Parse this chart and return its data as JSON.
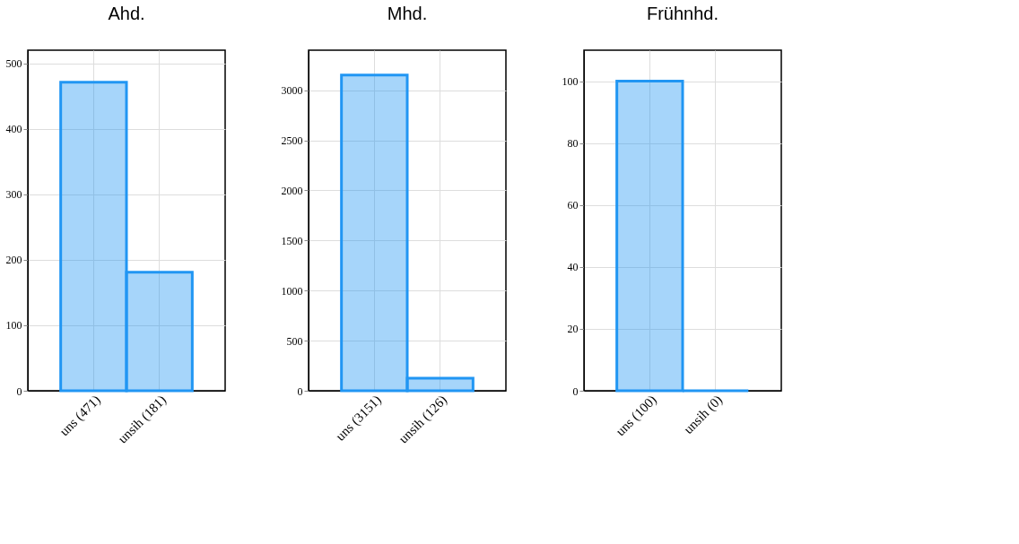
{
  "chart_data": [
    {
      "type": "bar",
      "title": "Ahd.",
      "categories": [
        "uns (471)",
        "unsih (181)"
      ],
      "series": [
        {
          "color": "#2196f3",
          "values": [
            471,
            181
          ]
        }
      ],
      "ylim": [
        0,
        520
      ],
      "yticks": [
        0,
        100,
        200,
        300,
        400,
        500
      ],
      "grid": true
    },
    {
      "type": "bar",
      "title": "Mhd.",
      "categories": [
        "uns (3151)",
        "unsih (126)"
      ],
      "series": [
        {
          "color": "#2196f3",
          "values": [
            3151,
            126
          ]
        }
      ],
      "ylim": [
        0,
        3400
      ],
      "yticks": [
        0,
        500,
        1000,
        1500,
        2000,
        2500,
        3000
      ],
      "grid": true
    },
    {
      "type": "bar",
      "title": "Frühnhd.",
      "categories": [
        "uns (100)",
        "unsih (0)"
      ],
      "series": [
        {
          "color": "#2196f3",
          "values": [
            100,
            0
          ]
        }
      ],
      "ylim": [
        0,
        110
      ],
      "yticks": [
        0,
        20,
        40,
        60,
        80,
        100
      ],
      "grid": true
    }
  ]
}
